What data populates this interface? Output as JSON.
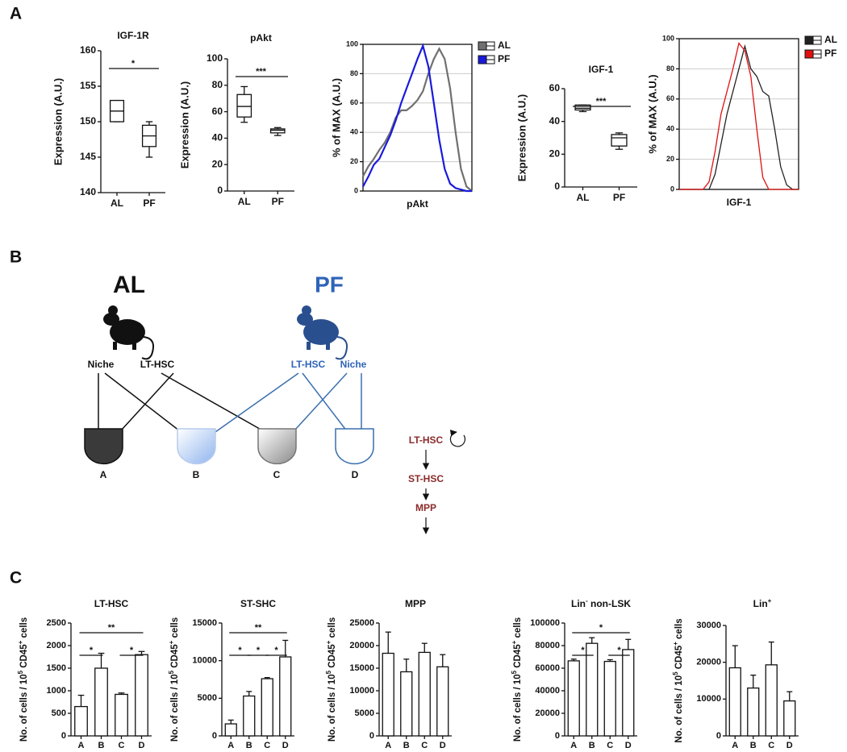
{
  "panel_labels": [
    "A",
    "B",
    "C"
  ],
  "chart_data": [
    {
      "type": "box",
      "title": "IGF-1R",
      "ylabel": "Expression (A.U.)",
      "categories": [
        "AL",
        "PF"
      ],
      "boxes": [
        {
          "min": 150,
          "q1": 150,
          "median": 151.5,
          "q3": 153,
          "max": 153
        },
        {
          "min": 145,
          "q1": 146.5,
          "median": 148,
          "q3": 149.5,
          "max": 150
        }
      ],
      "ylim": [
        140,
        160
      ],
      "yticks": [
        140,
        145,
        150,
        155,
        160
      ],
      "significance": [
        {
          "between": [
            "AL",
            "PF"
          ],
          "label": "*"
        }
      ]
    },
    {
      "type": "box",
      "title": "pAkt",
      "ylabel": "Expression (A.U.)",
      "categories": [
        "AL",
        "PF"
      ],
      "boxes": [
        {
          "min": 52,
          "q1": 56,
          "median": 64,
          "q3": 73,
          "max": 79
        },
        {
          "min": 42,
          "q1": 44,
          "median": 46,
          "q3": 47,
          "max": 48
        }
      ],
      "ylim": [
        0,
        100
      ],
      "yticks": [
        0,
        20,
        40,
        60,
        80,
        100
      ],
      "significance": [
        {
          "between": [
            "AL",
            "PF"
          ],
          "label": "***"
        }
      ]
    },
    {
      "type": "line",
      "ylabel": "% of MAX (A.U.)",
      "xlabel": "pAkt",
      "legend": "right",
      "grid": true,
      "x": [
        0,
        5,
        10,
        15,
        20,
        25,
        30,
        35,
        40,
        45,
        50,
        55,
        60,
        65,
        70,
        75,
        80,
        85,
        90,
        95,
        100
      ],
      "xlim": [
        0,
        100
      ],
      "ylim": [
        0,
        100
      ],
      "yticks": [
        0,
        20,
        40,
        60,
        80,
        100
      ],
      "series": [
        {
          "name": "AL",
          "color": "#707070",
          "values": [
            10,
            17,
            22,
            28,
            33,
            40,
            50,
            55,
            55,
            58,
            62,
            68,
            80,
            90,
            97,
            90,
            70,
            40,
            15,
            3,
            0
          ]
        },
        {
          "name": "PF",
          "color": "#1a1adc",
          "values": [
            3,
            10,
            18,
            22,
            30,
            38,
            48,
            60,
            70,
            80,
            90,
            99,
            85,
            60,
            35,
            15,
            5,
            2,
            1,
            0,
            0
          ]
        }
      ]
    },
    {
      "type": "box",
      "title": "IGF-1",
      "ylabel": "Expression (A.U.)",
      "categories": [
        "AL",
        "PF"
      ],
      "boxes": [
        {
          "min": 46,
          "q1": 47,
          "median": 48,
          "q3": 50,
          "max": 50
        },
        {
          "min": 23,
          "q1": 25,
          "median": 30,
          "q3": 32,
          "max": 33
        }
      ],
      "ylim": [
        0,
        60
      ],
      "yticks": [
        0,
        20,
        40,
        60
      ],
      "significance": [
        {
          "between": [
            "AL",
            "PF"
          ],
          "label": "***"
        }
      ]
    },
    {
      "type": "line",
      "ylabel": "% of MAX (A.U.)",
      "xlabel": "IGF-1",
      "legend": "right",
      "grid": true,
      "x": [
        0,
        5,
        10,
        15,
        20,
        25,
        30,
        35,
        40,
        45,
        50,
        55,
        60,
        65,
        70,
        75,
        80,
        85,
        90,
        95,
        100
      ],
      "xlim": [
        0,
        100
      ],
      "ylim": [
        0,
        100
      ],
      "yticks": [
        0,
        20,
        40,
        60,
        80,
        100
      ],
      "series": [
        {
          "name": "AL",
          "color": "#222222",
          "values": [
            0,
            0,
            0,
            0,
            0,
            0,
            10,
            30,
            50,
            65,
            80,
            95,
            80,
            75,
            65,
            62,
            40,
            15,
            3,
            0,
            0
          ]
        },
        {
          "name": "PF",
          "color": "#e01010",
          "values": [
            0,
            0,
            0,
            0,
            0,
            5,
            25,
            50,
            65,
            80,
            97,
            92,
            75,
            40,
            8,
            0,
            0,
            0,
            0,
            0,
            0
          ]
        }
      ]
    },
    {
      "type": "bar",
      "title": [
        "LT-HSC"
      ],
      "ylabel": [
        "No. of cells / 10",
        "5",
        " CD45",
        "+",
        " cells"
      ],
      "categories": [
        "A",
        "B",
        "C",
        "D"
      ],
      "values": [
        650,
        1500,
        920,
        1800
      ],
      "errors": [
        250,
        330,
        30,
        70
      ],
      "color": "#ffffff",
      "ylim": [
        0,
        2500
      ],
      "yticks": [
        0,
        500,
        1000,
        1500,
        2000,
        2500
      ],
      "significance": [
        {
          "between": [
            "A",
            "B"
          ],
          "label": "*"
        },
        {
          "between": [
            "C",
            "D"
          ],
          "label": "*"
        },
        {
          "between": [
            "A",
            "D"
          ],
          "label": "**"
        }
      ]
    },
    {
      "type": "bar",
      "title": [
        "ST-SHC"
      ],
      "ylabel": [
        "No. of cells / 10",
        "5",
        " CD45",
        "+",
        " cells"
      ],
      "categories": [
        "A",
        "B",
        "C",
        "D"
      ],
      "values": [
        1600,
        5300,
        7600,
        10500
      ],
      "errors": [
        500,
        600,
        150,
        2200
      ],
      "color": "#ffffff",
      "ylim": [
        0,
        15000
      ],
      "yticks": [
        0,
        5000,
        10000,
        15000
      ],
      "significance": [
        {
          "between": [
            "A",
            "B"
          ],
          "label": "*"
        },
        {
          "between": [
            "B",
            "C"
          ],
          "label": "*"
        },
        {
          "between": [
            "C",
            "D"
          ],
          "label": "*"
        },
        {
          "between": [
            "A",
            "D"
          ],
          "label": "**"
        }
      ]
    },
    {
      "type": "bar",
      "title": [
        "MPP"
      ],
      "ylabel": [
        "No. of cells / 10",
        "5",
        " CD45",
        "+",
        " cells"
      ],
      "categories": [
        "A",
        "B",
        "C",
        "D"
      ],
      "values": [
        18300,
        14200,
        18500,
        15300
      ],
      "errors": [
        4700,
        2800,
        2000,
        2700
      ],
      "color": "#ffffff",
      "ylim": [
        0,
        25000
      ],
      "yticks": [
        0,
        5000,
        10000,
        15000,
        20000,
        25000
      ],
      "significance": []
    },
    {
      "type": "bar",
      "title": [
        "Lin",
        "-",
        " non-LSK"
      ],
      "ylabel": [
        "No. of cells / 10",
        "5",
        " CD45",
        "+",
        " cells"
      ],
      "categories": [
        "A",
        "B",
        "C",
        "D"
      ],
      "values": [
        66500,
        82000,
        66000,
        76500
      ],
      "errors": [
        1500,
        5000,
        1500,
        9000
      ],
      "color": "#ffffff",
      "ylim": [
        0,
        100000
      ],
      "yticks": [
        0,
        20000,
        40000,
        60000,
        80000,
        100000
      ],
      "significance": [
        {
          "between": [
            "A",
            "B"
          ],
          "label": "*"
        },
        {
          "between": [
            "C",
            "D"
          ],
          "label": "*"
        },
        {
          "between": [
            "A",
            "D"
          ],
          "label": "*"
        }
      ]
    },
    {
      "type": "bar",
      "title": [
        "Lin",
        "+"
      ],
      "ylabel": [
        "No. of cells / 10",
        "5",
        " CD45",
        "+",
        " cells"
      ],
      "categories": [
        "A",
        "B",
        "C",
        "D"
      ],
      "values": [
        18500,
        13000,
        19300,
        9500
      ],
      "errors": [
        6000,
        3500,
        6200,
        2500
      ],
      "color": "#ffffff",
      "ylim": [
        0,
        30000
      ],
      "yticks": [
        0,
        10000,
        20000,
        30000
      ],
      "significance": []
    }
  ],
  "diagram": {
    "groups": [
      {
        "label": "AL",
        "sources": [
          "Niche",
          "LT-HSC"
        ]
      },
      {
        "label": "PF",
        "sources": [
          "LT-HSC",
          "Niche"
        ]
      }
    ],
    "dishes": [
      "A",
      "B",
      "C",
      "D"
    ],
    "hierarchy": [
      "LT-HSC",
      "ST-HSC",
      "MPP"
    ]
  }
}
